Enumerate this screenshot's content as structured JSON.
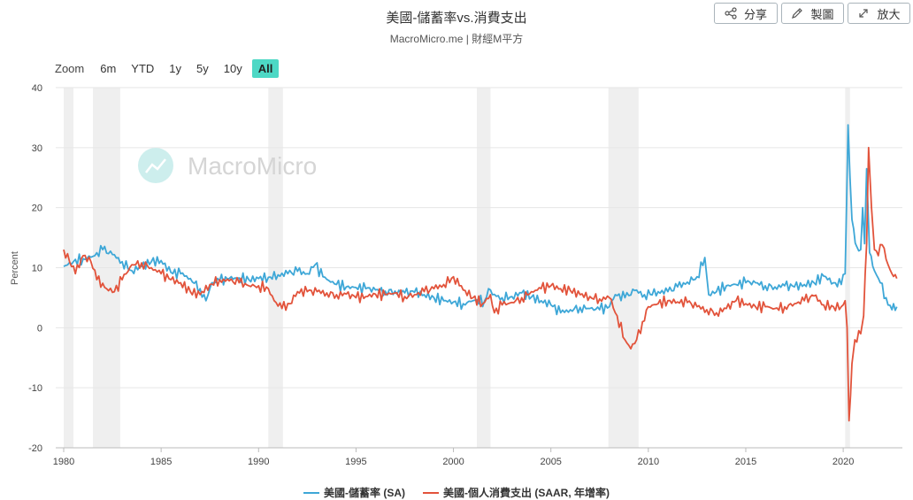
{
  "header": {
    "title": "美國-儲蓄率vs.消費支出",
    "subtitle": "MacroMicro.me | 財經M平方",
    "share_label": "分享",
    "draw_label": "製圖",
    "expand_label": "放大"
  },
  "zoom": {
    "label": "Zoom",
    "options": [
      "6m",
      "YTD",
      "1y",
      "5y",
      "10y",
      "All"
    ],
    "active": "All"
  },
  "watermark": {
    "text": "MacroMicro"
  },
  "colors": {
    "savings": "#3ea7d7",
    "spending": "#e2533b",
    "recession": "#efefef",
    "active_zoom": "#4dd8c5"
  },
  "chart_data": {
    "type": "line",
    "ylabel": "Percent",
    "ylim": [
      -20,
      40
    ],
    "yticks": [
      -20,
      -10,
      0,
      10,
      20,
      30,
      40
    ],
    "xlim": [
      1980,
      2022.9
    ],
    "xticks": [
      1980,
      1985,
      1990,
      1995,
      2000,
      2005,
      2010,
      2015,
      2020
    ],
    "grid": true,
    "legend_position": "bottom",
    "recessions": [
      [
        1980.0,
        1980.5
      ],
      [
        1981.5,
        1982.9
      ],
      [
        1990.5,
        1991.25
      ],
      [
        2001.2,
        2001.9
      ],
      [
        2007.95,
        2009.5
      ],
      [
        2020.1,
        2020.35
      ]
    ],
    "series": [
      {
        "name": "美國-儲蓄率 (SA)",
        "color": "#3ea7d7",
        "points": [
          [
            1980.0,
            10.2
          ],
          [
            1980.5,
            11.0
          ],
          [
            1981.0,
            11.5
          ],
          [
            1981.6,
            12.0
          ],
          [
            1982.0,
            13.0
          ],
          [
            1982.5,
            12.2
          ],
          [
            1983.0,
            11.0
          ],
          [
            1983.5,
            9.5
          ],
          [
            1984.0,
            10.2
          ],
          [
            1984.5,
            11.0
          ],
          [
            1985.0,
            11.2
          ],
          [
            1985.5,
            9.2
          ],
          [
            1986.0,
            9.0
          ],
          [
            1986.5,
            8.2
          ],
          [
            1987.0,
            6.5
          ],
          [
            1987.3,
            4.5
          ],
          [
            1987.6,
            7.5
          ],
          [
            1988.0,
            7.8
          ],
          [
            1988.5,
            8.2
          ],
          [
            1989.0,
            8.3
          ],
          [
            1989.5,
            8.0
          ],
          [
            1990.0,
            8.2
          ],
          [
            1990.5,
            8.4
          ],
          [
            1991.0,
            8.8
          ],
          [
            1991.5,
            9.0
          ],
          [
            1992.0,
            9.4
          ],
          [
            1992.5,
            9.0
          ],
          [
            1992.9,
            10.5
          ],
          [
            1993.3,
            8.5
          ],
          [
            1993.7,
            7.6
          ],
          [
            1994.0,
            7.2
          ],
          [
            1994.5,
            6.8
          ],
          [
            1995.0,
            6.7
          ],
          [
            1995.5,
            6.5
          ],
          [
            1996.0,
            6.3
          ],
          [
            1996.5,
            6.1
          ],
          [
            1997.0,
            6.1
          ],
          [
            1997.5,
            5.8
          ],
          [
            1998.0,
            5.9
          ],
          [
            1998.5,
            5.5
          ],
          [
            1999.0,
            5.0
          ],
          [
            1999.5,
            4.5
          ],
          [
            2000.0,
            4.3
          ],
          [
            2000.5,
            4.0
          ],
          [
            2001.0,
            4.5
          ],
          [
            2001.6,
            4.5
          ],
          [
            2001.8,
            6.5
          ],
          [
            2002.0,
            5.5
          ],
          [
            2002.5,
            5.0
          ],
          [
            2003.0,
            5.2
          ],
          [
            2003.5,
            5.8
          ],
          [
            2004.0,
            5.1
          ],
          [
            2004.5,
            4.5
          ],
          [
            2005.0,
            3.8
          ],
          [
            2005.5,
            2.5
          ],
          [
            2006.0,
            3.0
          ],
          [
            2006.5,
            3.4
          ],
          [
            2007.0,
            3.2
          ],
          [
            2007.5,
            3.0
          ],
          [
            2008.0,
            3.5
          ],
          [
            2008.3,
            5.5
          ],
          [
            2008.8,
            5.0
          ],
          [
            2009.3,
            6.2
          ],
          [
            2009.8,
            5.5
          ],
          [
            2010.5,
            6.0
          ],
          [
            2011.0,
            6.0
          ],
          [
            2011.5,
            6.8
          ],
          [
            2012.0,
            7.6
          ],
          [
            2012.5,
            8.5
          ],
          [
            2012.9,
            11.7
          ],
          [
            2013.1,
            5.5
          ],
          [
            2013.5,
            6.0
          ],
          [
            2014.0,
            7.0
          ],
          [
            2014.5,
            7.2
          ],
          [
            2015.0,
            7.5
          ],
          [
            2015.5,
            7.5
          ],
          [
            2016.0,
            7.0
          ],
          [
            2016.5,
            6.8
          ],
          [
            2017.0,
            7.0
          ],
          [
            2017.5,
            6.8
          ],
          [
            2018.0,
            7.2
          ],
          [
            2018.5,
            7.5
          ],
          [
            2019.0,
            8.6
          ],
          [
            2019.5,
            7.5
          ],
          [
            2019.9,
            7.2
          ],
          [
            2020.1,
            9.0
          ],
          [
            2020.25,
            33.8
          ],
          [
            2020.45,
            18.0
          ],
          [
            2020.7,
            13.5
          ],
          [
            2020.9,
            13.0
          ],
          [
            2021.0,
            20.0
          ],
          [
            2021.1,
            14.0
          ],
          [
            2021.2,
            26.5
          ],
          [
            2021.35,
            12.5
          ],
          [
            2021.6,
            9.5
          ],
          [
            2021.9,
            7.5
          ],
          [
            2022.2,
            5.0
          ],
          [
            2022.5,
            3.0
          ],
          [
            2022.75,
            3.5
          ]
        ]
      },
      {
        "name": "美國-個人消費支出 (SAAR, 年增率)",
        "color": "#e2533b",
        "points": [
          [
            1980.0,
            13.0
          ],
          [
            1980.3,
            11.0
          ],
          [
            1980.6,
            9.0
          ],
          [
            1981.0,
            12.0
          ],
          [
            1981.4,
            11.0
          ],
          [
            1981.7,
            8.0
          ],
          [
            1982.2,
            6.5
          ],
          [
            1982.6,
            6.0
          ],
          [
            1983.0,
            8.0
          ],
          [
            1983.5,
            10.5
          ],
          [
            1984.0,
            10.8
          ],
          [
            1984.5,
            10.0
          ],
          [
            1985.0,
            9.0
          ],
          [
            1985.5,
            8.0
          ],
          [
            1986.0,
            7.5
          ],
          [
            1986.5,
            6.0
          ],
          [
            1987.0,
            5.5
          ],
          [
            1987.5,
            7.2
          ],
          [
            1988.0,
            8.0
          ],
          [
            1988.5,
            7.8
          ],
          [
            1989.0,
            7.5
          ],
          [
            1989.5,
            7.0
          ],
          [
            1990.0,
            7.0
          ],
          [
            1990.5,
            6.5
          ],
          [
            1990.8,
            4.5
          ],
          [
            1991.2,
            3.2
          ],
          [
            1991.6,
            4.0
          ],
          [
            1992.0,
            6.0
          ],
          [
            1992.5,
            6.0
          ],
          [
            1993.0,
            6.0
          ],
          [
            1993.5,
            5.8
          ],
          [
            1994.0,
            5.5
          ],
          [
            1994.5,
            5.6
          ],
          [
            1995.0,
            5.0
          ],
          [
            1995.5,
            5.2
          ],
          [
            1996.0,
            5.6
          ],
          [
            1996.5,
            5.5
          ],
          [
            1997.0,
            5.8
          ],
          [
            1997.5,
            5.2
          ],
          [
            1998.0,
            5.5
          ],
          [
            1998.5,
            6.0
          ],
          [
            1999.0,
            6.5
          ],
          [
            1999.5,
            7.2
          ],
          [
            2000.0,
            8.5
          ],
          [
            2000.3,
            7.0
          ],
          [
            2000.6,
            6.2
          ],
          [
            2001.0,
            5.0
          ],
          [
            2001.5,
            4.0
          ],
          [
            2001.9,
            5.5
          ],
          [
            2002.1,
            2.5
          ],
          [
            2002.5,
            3.8
          ],
          [
            2003.0,
            4.2
          ],
          [
            2003.5,
            5.0
          ],
          [
            2004.0,
            6.0
          ],
          [
            2004.5,
            6.5
          ],
          [
            2005.0,
            7.0
          ],
          [
            2005.5,
            6.5
          ],
          [
            2006.0,
            6.2
          ],
          [
            2006.5,
            5.5
          ],
          [
            2007.0,
            5.2
          ],
          [
            2007.5,
            4.8
          ],
          [
            2008.0,
            5.0
          ],
          [
            2008.4,
            2.0
          ],
          [
            2008.8,
            -2.0
          ],
          [
            2009.1,
            -3.5
          ],
          [
            2009.4,
            -2.0
          ],
          [
            2009.7,
            1.0
          ],
          [
            2010.0,
            3.5
          ],
          [
            2010.5,
            4.0
          ],
          [
            2011.0,
            4.5
          ],
          [
            2011.5,
            4.3
          ],
          [
            2012.0,
            4.2
          ],
          [
            2012.5,
            3.5
          ],
          [
            2013.0,
            3.0
          ],
          [
            2013.5,
            2.5
          ],
          [
            2014.0,
            3.2
          ],
          [
            2014.5,
            4.5
          ],
          [
            2015.0,
            4.0
          ],
          [
            2015.5,
            3.5
          ],
          [
            2016.0,
            3.5
          ],
          [
            2016.5,
            3.2
          ],
          [
            2017.0,
            3.5
          ],
          [
            2017.5,
            4.0
          ],
          [
            2018.0,
            4.5
          ],
          [
            2018.5,
            5.3
          ],
          [
            2019.0,
            3.8
          ],
          [
            2019.5,
            3.5
          ],
          [
            2019.9,
            3.5
          ],
          [
            2020.1,
            4.5
          ],
          [
            2020.2,
            0.0
          ],
          [
            2020.3,
            -15.5
          ],
          [
            2020.45,
            -6.0
          ],
          [
            2020.6,
            -2.0
          ],
          [
            2020.9,
            -1.0
          ],
          [
            2021.05,
            2.0
          ],
          [
            2021.2,
            14.0
          ],
          [
            2021.3,
            30.0
          ],
          [
            2021.45,
            20.0
          ],
          [
            2021.6,
            13.0
          ],
          [
            2021.8,
            12.0
          ],
          [
            2022.0,
            13.8
          ],
          [
            2022.3,
            10.5
          ],
          [
            2022.5,
            9.0
          ],
          [
            2022.75,
            8.2
          ]
        ]
      }
    ]
  }
}
